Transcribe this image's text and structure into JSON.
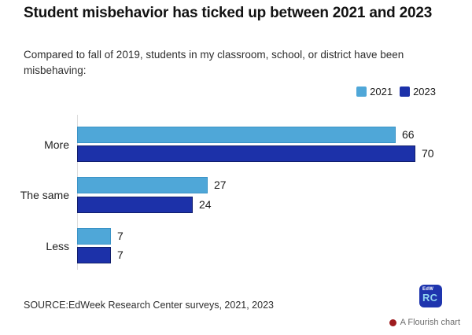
{
  "header": {
    "title": "Student misbehavior has ticked up between 2021 and 2023",
    "subtitle": "Compared to fall of 2019, students in my classroom, school, or district have been misbehaving:"
  },
  "chart_data": {
    "type": "bar",
    "orientation": "horizontal",
    "title": "Student misbehavior has ticked up between 2021 and 2023",
    "subtitle": "Compared to fall of 2019, students in my classroom, school, or district have been misbehaving:",
    "categories": [
      "More",
      "The same",
      "Less"
    ],
    "series": [
      {
        "name": "2021",
        "values": [
          66,
          27,
          7
        ],
        "color": "#4FA7D8",
        "border_color": "#3A93C6"
      },
      {
        "name": "2023",
        "values": [
          70,
          24,
          7
        ],
        "color": "#1C31A9",
        "border_color": "#101D6B"
      }
    ],
    "xlim": [
      0,
      70
    ],
    "value_labels": true,
    "legend_position": "top-right",
    "grid": false
  },
  "footer": {
    "source": "SOURCE:EdWeek Research Center surveys, 2021, 2023",
    "logo": {
      "line1": "EdW",
      "line2": "RC"
    },
    "attribution": "A Flourish chart"
  },
  "colors": {
    "axis_line": "#dcdcdc",
    "attribution_dot": "#9E1B1E",
    "logo_bg": "#1E35AE",
    "logo_rc": "#8FD4F0"
  }
}
